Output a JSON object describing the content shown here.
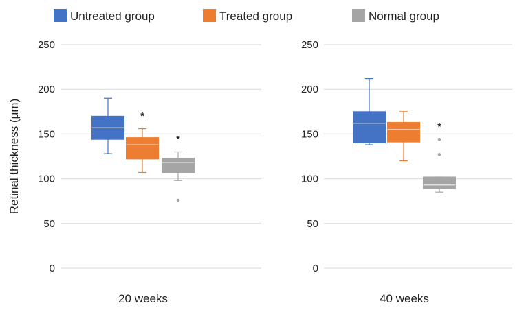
{
  "chart_data": {
    "type": "box",
    "ylabel": "Retinal thickness (μm)",
    "ylim": [
      0,
      250
    ],
    "yticks": [
      0,
      50,
      100,
      150,
      200,
      250
    ],
    "grid": true,
    "legend_position": "top",
    "series": [
      {
        "name": "Untreated group",
        "color": "#4472C4"
      },
      {
        "name": "Treated group",
        "color": "#ED7D31"
      },
      {
        "name": "Normal group",
        "color": "#A5A5A5"
      }
    ],
    "panels": [
      {
        "xlabel": "20 weeks",
        "boxes": [
          {
            "series": "Untreated group",
            "min": 128,
            "q1": 144,
            "median": 157,
            "q3": 170,
            "max": 190,
            "outliers": [],
            "marker": ""
          },
          {
            "series": "Treated group",
            "min": 107,
            "q1": 122,
            "median": 138,
            "q3": 146,
            "max": 156,
            "outliers": [],
            "marker": "*"
          },
          {
            "series": "Normal group",
            "min": 98,
            "q1": 107,
            "median": 118,
            "q3": 123,
            "max": 130,
            "outliers": [
              76
            ],
            "marker": "*"
          }
        ]
      },
      {
        "xlabel": "40 weeks",
        "boxes": [
          {
            "series": "Untreated group",
            "min": 138,
            "q1": 140,
            "median": 162,
            "q3": 175,
            "max": 212,
            "outliers": [],
            "marker": ""
          },
          {
            "series": "Treated group",
            "min": 120,
            "q1": 141,
            "median": 155,
            "q3": 163,
            "max": 175,
            "outliers": [],
            "marker": ""
          },
          {
            "series": "Normal group",
            "min": 85,
            "q1": 89,
            "median": 93,
            "q3": 102,
            "max": 102,
            "outliers": [
              144,
              127
            ],
            "marker": "*"
          }
        ]
      }
    ]
  }
}
